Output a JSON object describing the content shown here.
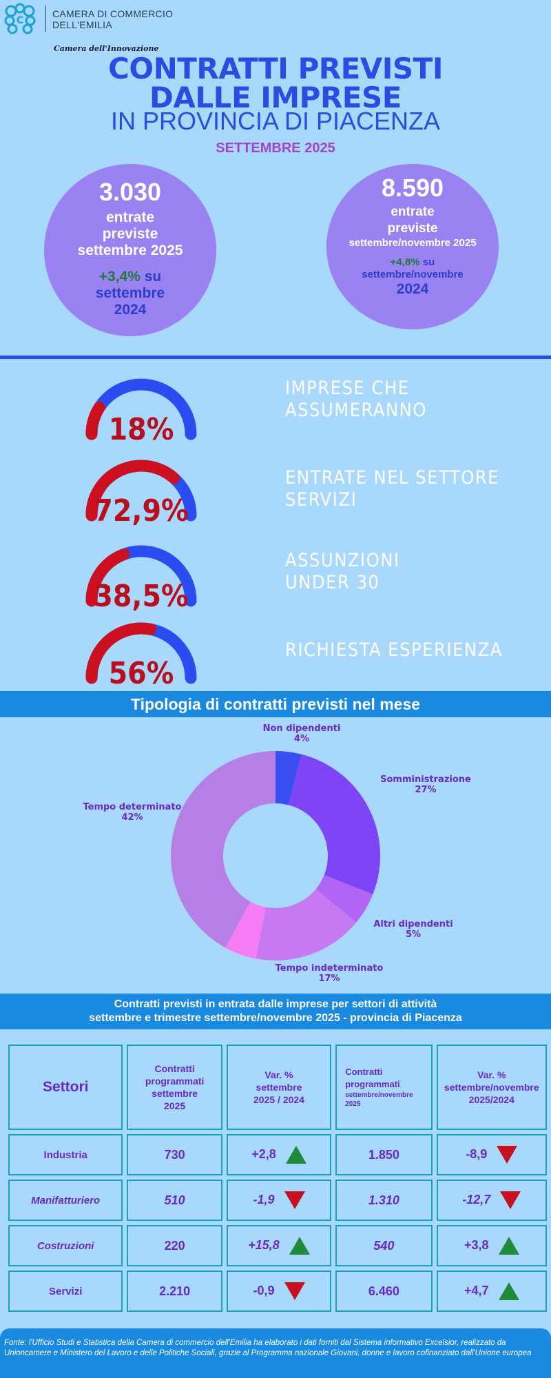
{
  "header": {
    "org_line1": "CAMERA DI COMMERCIO",
    "org_line2": "DELL'EMILIA",
    "tagline": "Camera dell'Innovazione",
    "title_line1": "CONTRATTI PREVISTI",
    "title_line2": "DALLE IMPRESE",
    "subtitle": "IN PROVINCIA DI PIACENZA",
    "month": "SETTEMBRE 2025"
  },
  "bubbles": [
    {
      "number": "3.030",
      "line1": "entrate",
      "line2": "previste",
      "line3": "settembre 2025",
      "var": "+3,4%",
      "var_suffix": "su",
      "cmp1": "settembre",
      "cmp2": "2024"
    },
    {
      "number": "8.590",
      "line1": "entrate",
      "line2": "previste",
      "line3": "settembre/novembre 2025",
      "var": "+4,8%",
      "var_suffix": "su",
      "cmp1": "settembre/novembre",
      "cmp2": "2024"
    }
  ],
  "gauges": [
    {
      "value": 18,
      "display": "18%",
      "label1": "IMPRESE CHE",
      "label2": "ASSUMERANNO"
    },
    {
      "value": 72.9,
      "display": "72,9%",
      "label1": "ENTRATE NEL SETTORE",
      "label2": "SERVIZI"
    },
    {
      "value": 38.5,
      "display": "38,5%",
      "label1": "ASSUNZIONI",
      "label2": "UNDER 30"
    },
    {
      "value": 56,
      "display": "56%",
      "label1": "RICHIESTA ESPERIENZA",
      "label2": ""
    }
  ],
  "colors": {
    "gauge_fill": "#cc1020",
    "gauge_rest": "#2a4cf0",
    "gauge_text": "#b80f1e"
  },
  "chart_data": {
    "type": "pie",
    "title": "Tipologia di contratti previsti nel mese",
    "slices": [
      {
        "name": "Non dipendenti",
        "value": 4,
        "label": "4%",
        "color": "#3a4ff0"
      },
      {
        "name": "Somministrazione",
        "value": 27,
        "label": "27%",
        "color": "#7d45f5"
      },
      {
        "name": "Altri dipendenti",
        "value": 5,
        "label": "5%",
        "color": "#b065f5"
      },
      {
        "name": "Tempo indeterminato",
        "value": 17,
        "label": "17%",
        "color": "#c679f0"
      },
      {
        "name": "",
        "value": 5,
        "label": "",
        "color": "#f57cf5"
      },
      {
        "name": "Tempo determinato",
        "value": 42,
        "label": "42%",
        "color": "#b57fe6"
      }
    ]
  },
  "table": {
    "title_line1": "Contratti previsti in entrata dalle imprese per settori di attività",
    "title_line2": "settembre e trimestre settembre/novembre 2025 - provincia di Piacenza",
    "headers": {
      "settori": "Settori",
      "c1_a": "Contratti",
      "c1_b": "programmati",
      "c1_c": "settembre",
      "c1_d": "2025",
      "c2_a": "Var. %",
      "c2_b": "settembre",
      "c2_c": "2025 / 2024",
      "c3_a": "Contratti",
      "c3_b": "programmati",
      "c3_c": "settembre/novembre",
      "c3_d": "2025",
      "c4_a": "Var. %",
      "c4_b": "settembre/novembre",
      "c4_c": "2025/2024"
    },
    "rows": [
      {
        "sector": "Industria",
        "c1": "730",
        "v1": "+2,8",
        "d1": "up",
        "c3": "1.850",
        "v2": "-8,9",
        "d2": "down"
      },
      {
        "sector": "Manifatturiero",
        "c1": "510",
        "v1": "-1,9",
        "d1": "down",
        "c3": "1.310",
        "v2": "-12,7",
        "d2": "down"
      },
      {
        "sector": "Costruzioni",
        "c1": "220",
        "v1": "+15,8",
        "d1": "up",
        "c3": "540",
        "v2": "+3,8",
        "d2": "up"
      },
      {
        "sector": "Servizi",
        "c1": "2.210",
        "v1": "-0,9",
        "d1": "down",
        "c3": "6.460",
        "v2": "+4,7",
        "d2": "up"
      }
    ]
  },
  "footer": {
    "text": "Fonte: l'Ufficio Studi e Statistica della Camera di commercio dell'Emilia ha elaborato i dati forniti dal Sistema informativo Excelsior, realizzato da Unioncamere e Ministero del Lavoro e delle Politiche Sociali, grazie al Programma nazionale Giovani, donne e lavoro cofinanziato dall'Unione europea"
  }
}
